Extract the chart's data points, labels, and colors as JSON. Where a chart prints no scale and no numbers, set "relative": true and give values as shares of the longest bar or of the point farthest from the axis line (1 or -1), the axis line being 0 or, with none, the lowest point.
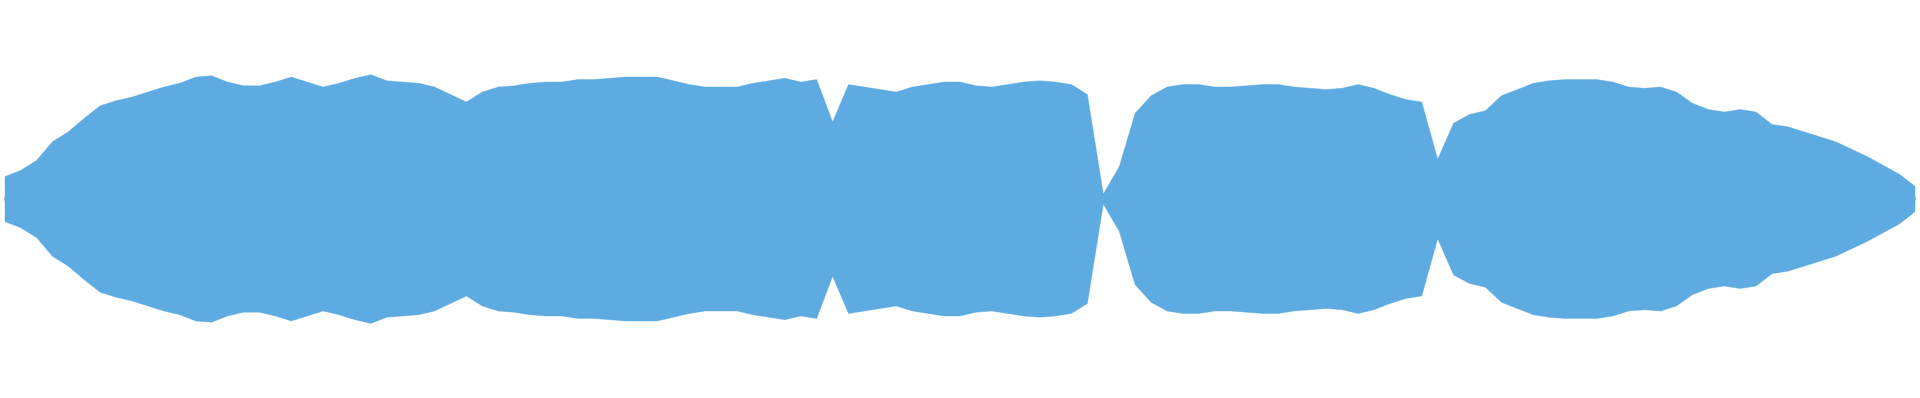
{
  "chart_data": {
    "type": "area",
    "relative": true,
    "categories": [
      null,
      null,
      null,
      null,
      null,
      null,
      null,
      null,
      null,
      null,
      null,
      null,
      null,
      null,
      null,
      null,
      null,
      null,
      null,
      null,
      null,
      null,
      null,
      null,
      null,
      null,
      null,
      null,
      null,
      null,
      null,
      null,
      null,
      null,
      null,
      null,
      null,
      null,
      null,
      null,
      null,
      null,
      null,
      null,
      null,
      null,
      null,
      null,
      null,
      null,
      null,
      null,
      null,
      null,
      null,
      null,
      null,
      null,
      null,
      null,
      null,
      null,
      null,
      null,
      null,
      null,
      null,
      null,
      null,
      null,
      null,
      null,
      null,
      null,
      null,
      null,
      null,
      null,
      null,
      null,
      null,
      null,
      null,
      null,
      null,
      null,
      null,
      null,
      null,
      null,
      null,
      null,
      null,
      null,
      null,
      null,
      null,
      null,
      null,
      null,
      null,
      null,
      null,
      null,
      null,
      null,
      null,
      null,
      null,
      null,
      null,
      null,
      null,
      null,
      null,
      null,
      null,
      null,
      null,
      null,
      null
    ],
    "series": [
      {
        "color": "#5dabe1",
        "values": [
          0.18,
          0.23,
          0.31,
          0.46,
          0.54,
          0.65,
          0.75,
          0.79,
          0.82,
          0.86,
          0.9,
          0.93,
          0.98,
          0.99,
          0.94,
          0.91,
          0.91,
          0.94,
          0.98,
          0.94,
          0.9,
          0.93,
          0.97,
          1.0,
          0.95,
          0.94,
          0.93,
          0.9,
          0.84,
          0.78,
          0.86,
          0.9,
          0.91,
          0.93,
          0.94,
          0.94,
          0.96,
          0.96,
          0.97,
          0.98,
          0.98,
          0.98,
          0.95,
          0.92,
          0.9,
          0.9,
          0.9,
          0.93,
          0.95,
          0.97,
          0.94,
          0.96,
          0.62,
          0.92,
          0.9,
          0.88,
          0.86,
          0.9,
          0.92,
          0.94,
          0.94,
          0.91,
          0.9,
          0.92,
          0.94,
          0.95,
          0.94,
          0.92,
          0.84,
          0.04,
          0.26,
          0.69,
          0.83,
          0.9,
          0.92,
          0.92,
          0.9,
          0.9,
          0.91,
          0.92,
          0.92,
          0.9,
          0.89,
          0.88,
          0.89,
          0.92,
          0.89,
          0.84,
          0.8,
          0.78,
          0.32,
          0.61,
          0.68,
          0.71,
          0.83,
          0.88,
          0.93,
          0.95,
          0.96,
          0.96,
          0.96,
          0.94,
          0.9,
          0.89,
          0.9,
          0.86,
          0.77,
          0.72,
          0.7,
          0.72,
          0.7,
          0.6,
          0.58,
          0.54,
          0.5,
          0.46,
          0.4,
          0.34,
          0.27,
          0.2,
          0.1
        ]
      },
      {
        "color": "#5dabe1",
        "values": [
          -0.18,
          -0.23,
          -0.31,
          -0.46,
          -0.54,
          -0.65,
          -0.75,
          -0.79,
          -0.82,
          -0.86,
          -0.9,
          -0.93,
          -0.98,
          -0.99,
          -0.94,
          -0.91,
          -0.91,
          -0.94,
          -0.98,
          -0.94,
          -0.9,
          -0.93,
          -0.97,
          -1.0,
          -0.95,
          -0.94,
          -0.93,
          -0.9,
          -0.84,
          -0.78,
          -0.86,
          -0.9,
          -0.91,
          -0.93,
          -0.94,
          -0.94,
          -0.96,
          -0.96,
          -0.97,
          -0.98,
          -0.98,
          -0.98,
          -0.95,
          -0.92,
          -0.9,
          -0.9,
          -0.9,
          -0.93,
          -0.95,
          -0.97,
          -0.94,
          -0.96,
          -0.62,
          -0.92,
          -0.9,
          -0.88,
          -0.86,
          -0.9,
          -0.92,
          -0.94,
          -0.94,
          -0.91,
          -0.9,
          -0.92,
          -0.94,
          -0.95,
          -0.94,
          -0.92,
          -0.84,
          -0.04,
          -0.26,
          -0.69,
          -0.83,
          -0.9,
          -0.92,
          -0.92,
          -0.9,
          -0.9,
          -0.91,
          -0.92,
          -0.92,
          -0.9,
          -0.89,
          -0.88,
          -0.89,
          -0.92,
          -0.89,
          -0.84,
          -0.8,
          -0.78,
          -0.32,
          -0.61,
          -0.68,
          -0.71,
          -0.83,
          -0.88,
          -0.93,
          -0.95,
          -0.96,
          -0.96,
          -0.96,
          -0.94,
          -0.9,
          -0.89,
          -0.9,
          -0.86,
          -0.77,
          -0.72,
          -0.7,
          -0.72,
          -0.7,
          -0.6,
          -0.58,
          -0.54,
          -0.5,
          -0.46,
          -0.4,
          -0.34,
          -0.27,
          -0.2,
          -0.1
        ]
      }
    ]
  }
}
